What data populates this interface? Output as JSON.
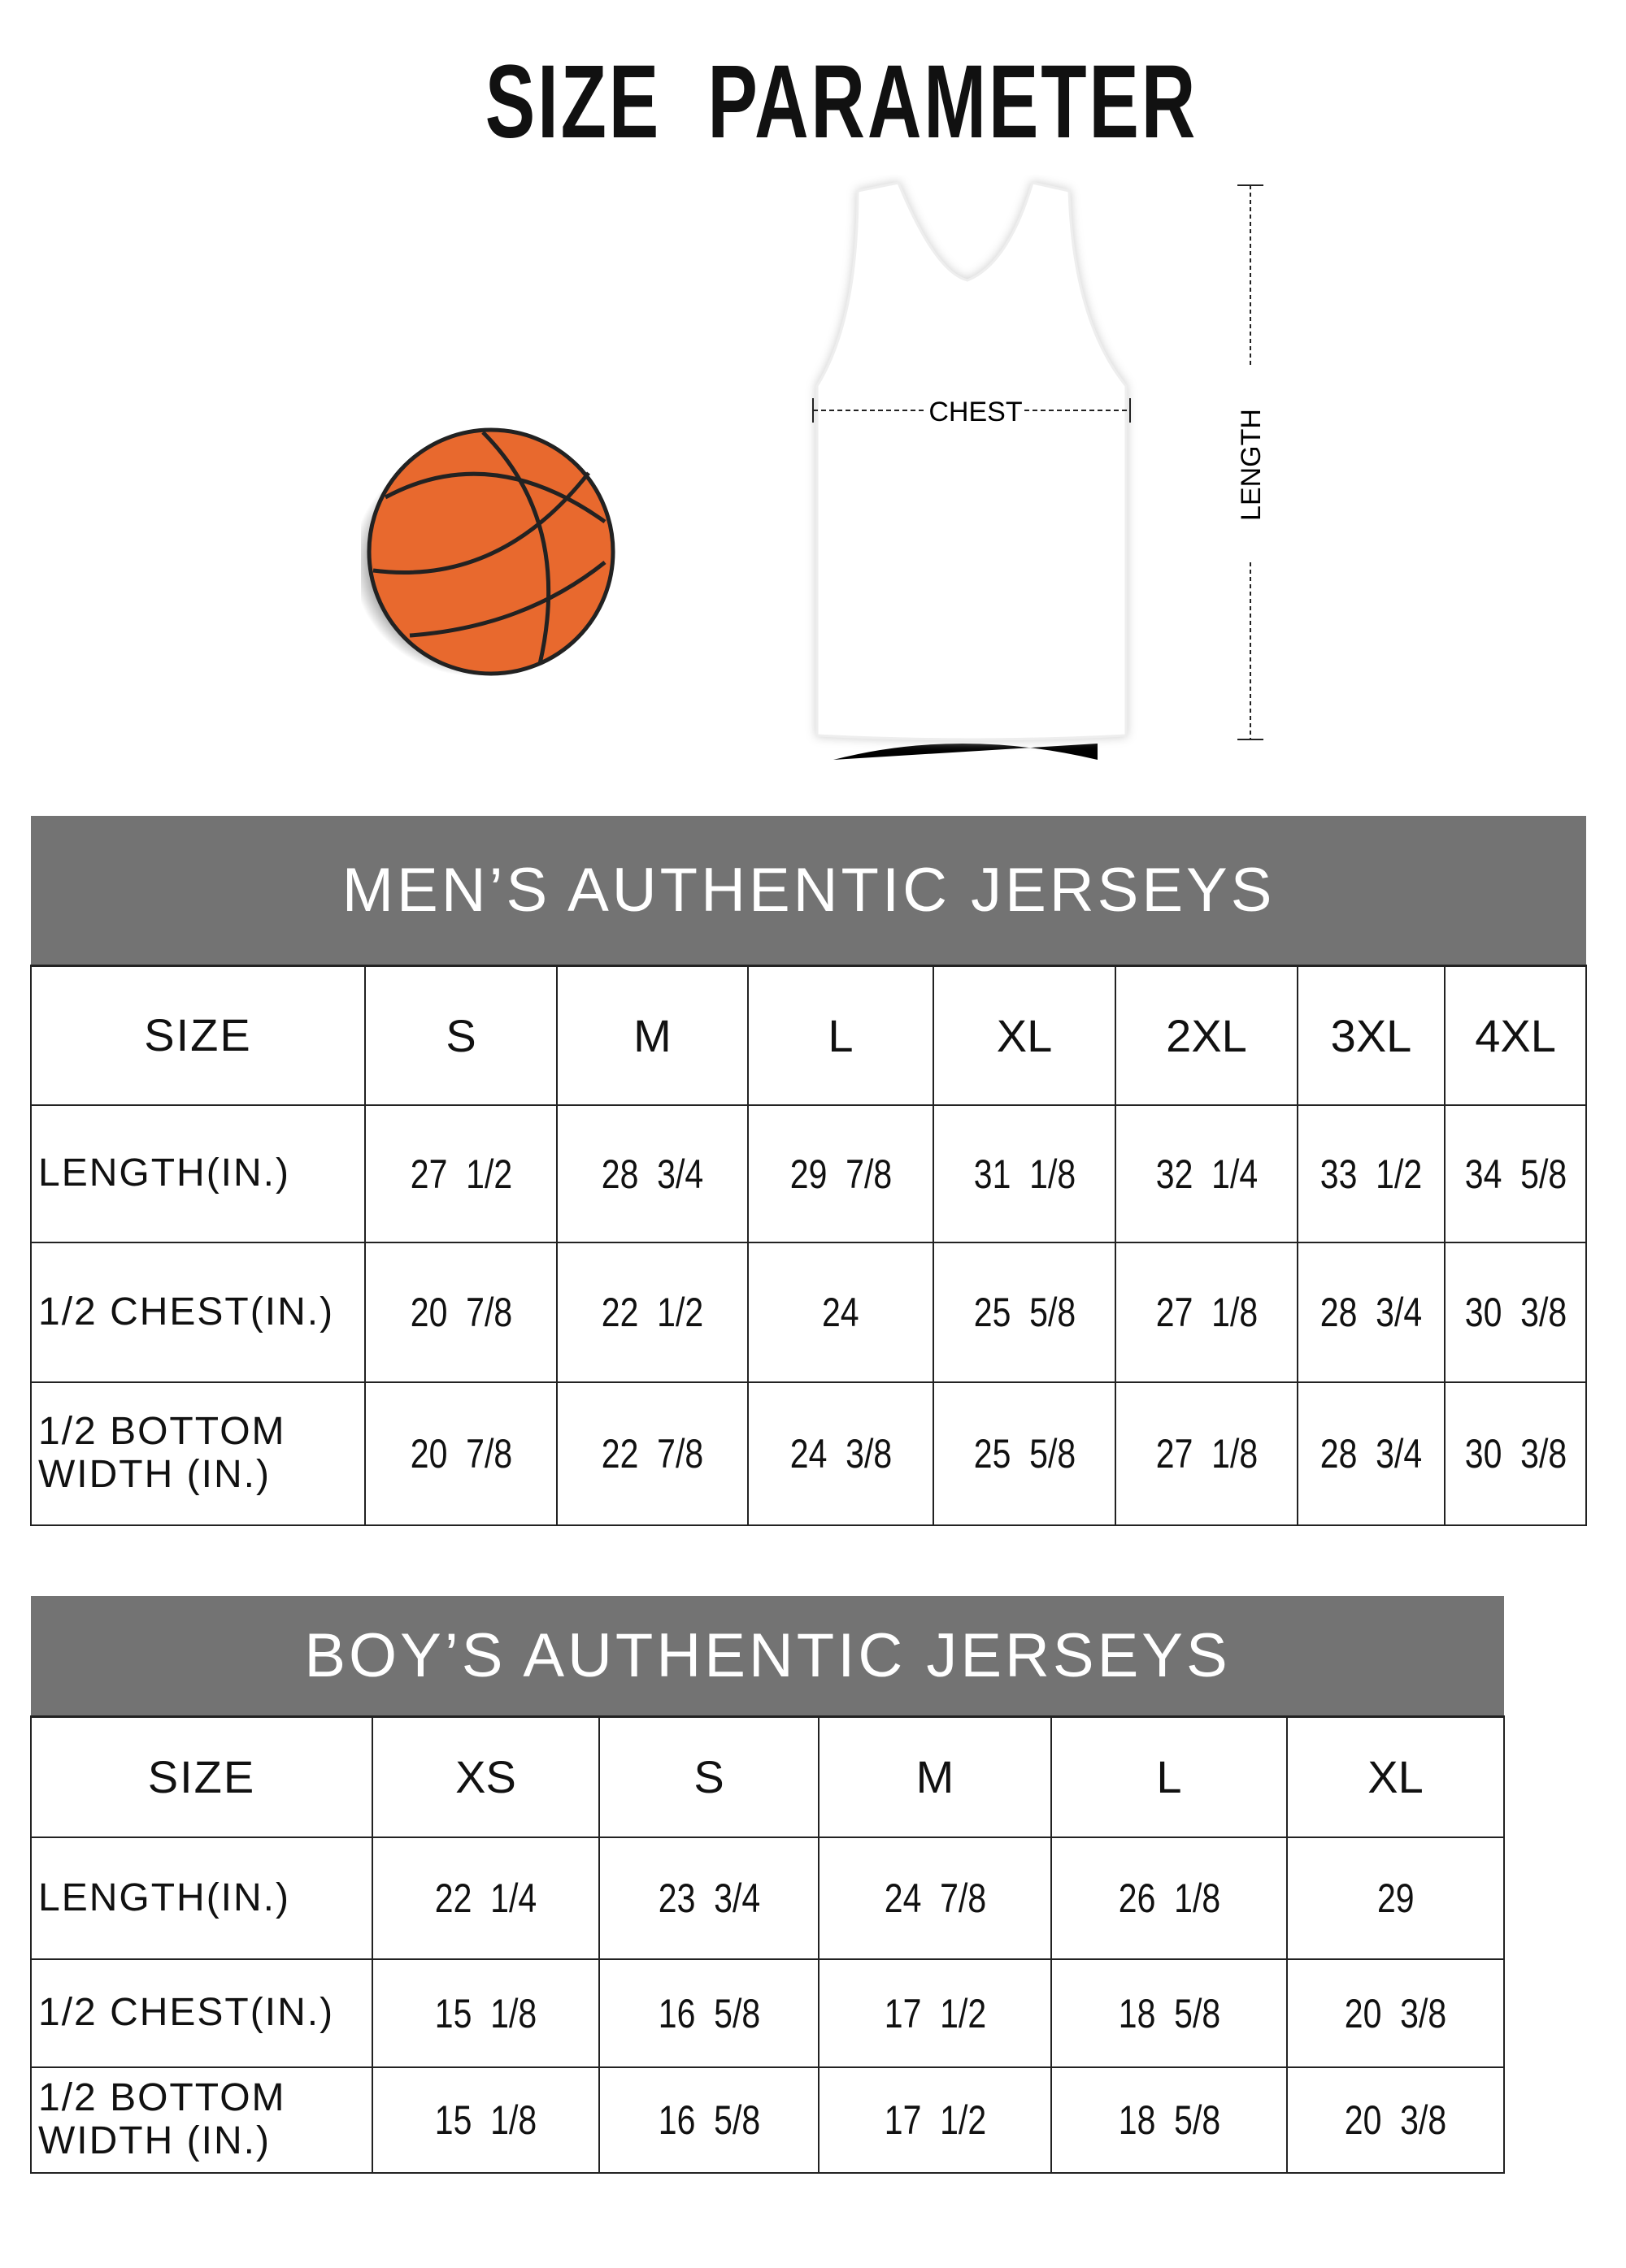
{
  "title": [
    "SIZE",
    "PARAMETER"
  ],
  "diagram": {
    "chest_label": "CHEST",
    "length_label": "LENGTH",
    "ball_color": "#e8692e",
    "header_color": "#737373"
  },
  "mens": {
    "title": "MEN’S AUTHENTIC JERSEYS",
    "headers": [
      "SIZE",
      "S",
      "M",
      "L",
      "XL",
      "2XL",
      "3XL",
      "4XL"
    ],
    "rows": [
      {
        "label": "LENGTH(IN.)",
        "values": [
          "27  1/2",
          "28  3/4",
          "29  7/8",
          "31  1/8",
          "32  1/4",
          "33  1/2",
          "34  5/8"
        ]
      },
      {
        "label": "1/2 CHEST(IN.)",
        "values": [
          "20  7/8",
          "22  1/2",
          "24",
          "25  5/8",
          "27  1/8",
          "28  3/4",
          "30  3/8"
        ]
      },
      {
        "label": "1/2 BOTTOM\nWIDTH  (IN.)",
        "values": [
          "20  7/8",
          "22  7/8",
          "24  3/8",
          "25  5/8",
          "27  1/8",
          "28  3/4",
          "30  3/8"
        ]
      }
    ]
  },
  "boys": {
    "title": "BOY’S AUTHENTIC JERSEYS",
    "headers": [
      "SIZE",
      "XS",
      "S",
      "M",
      "L",
      "XL"
    ],
    "rows": [
      {
        "label": "LENGTH(IN.)",
        "values": [
          "22  1/4",
          "23  3/4",
          "24  7/8",
          "26  1/8",
          "29"
        ]
      },
      {
        "label": "1/2 CHEST(IN.)",
        "values": [
          "15  1/8",
          "16  5/8",
          "17  1/2",
          "18  5/8",
          "20  3/8"
        ]
      },
      {
        "label": "1/2 BOTTOM\nWIDTH  (IN.)",
        "values": [
          "15  1/8",
          "16  5/8",
          "17  1/2",
          "18  5/8",
          "20  3/8"
        ]
      }
    ]
  }
}
